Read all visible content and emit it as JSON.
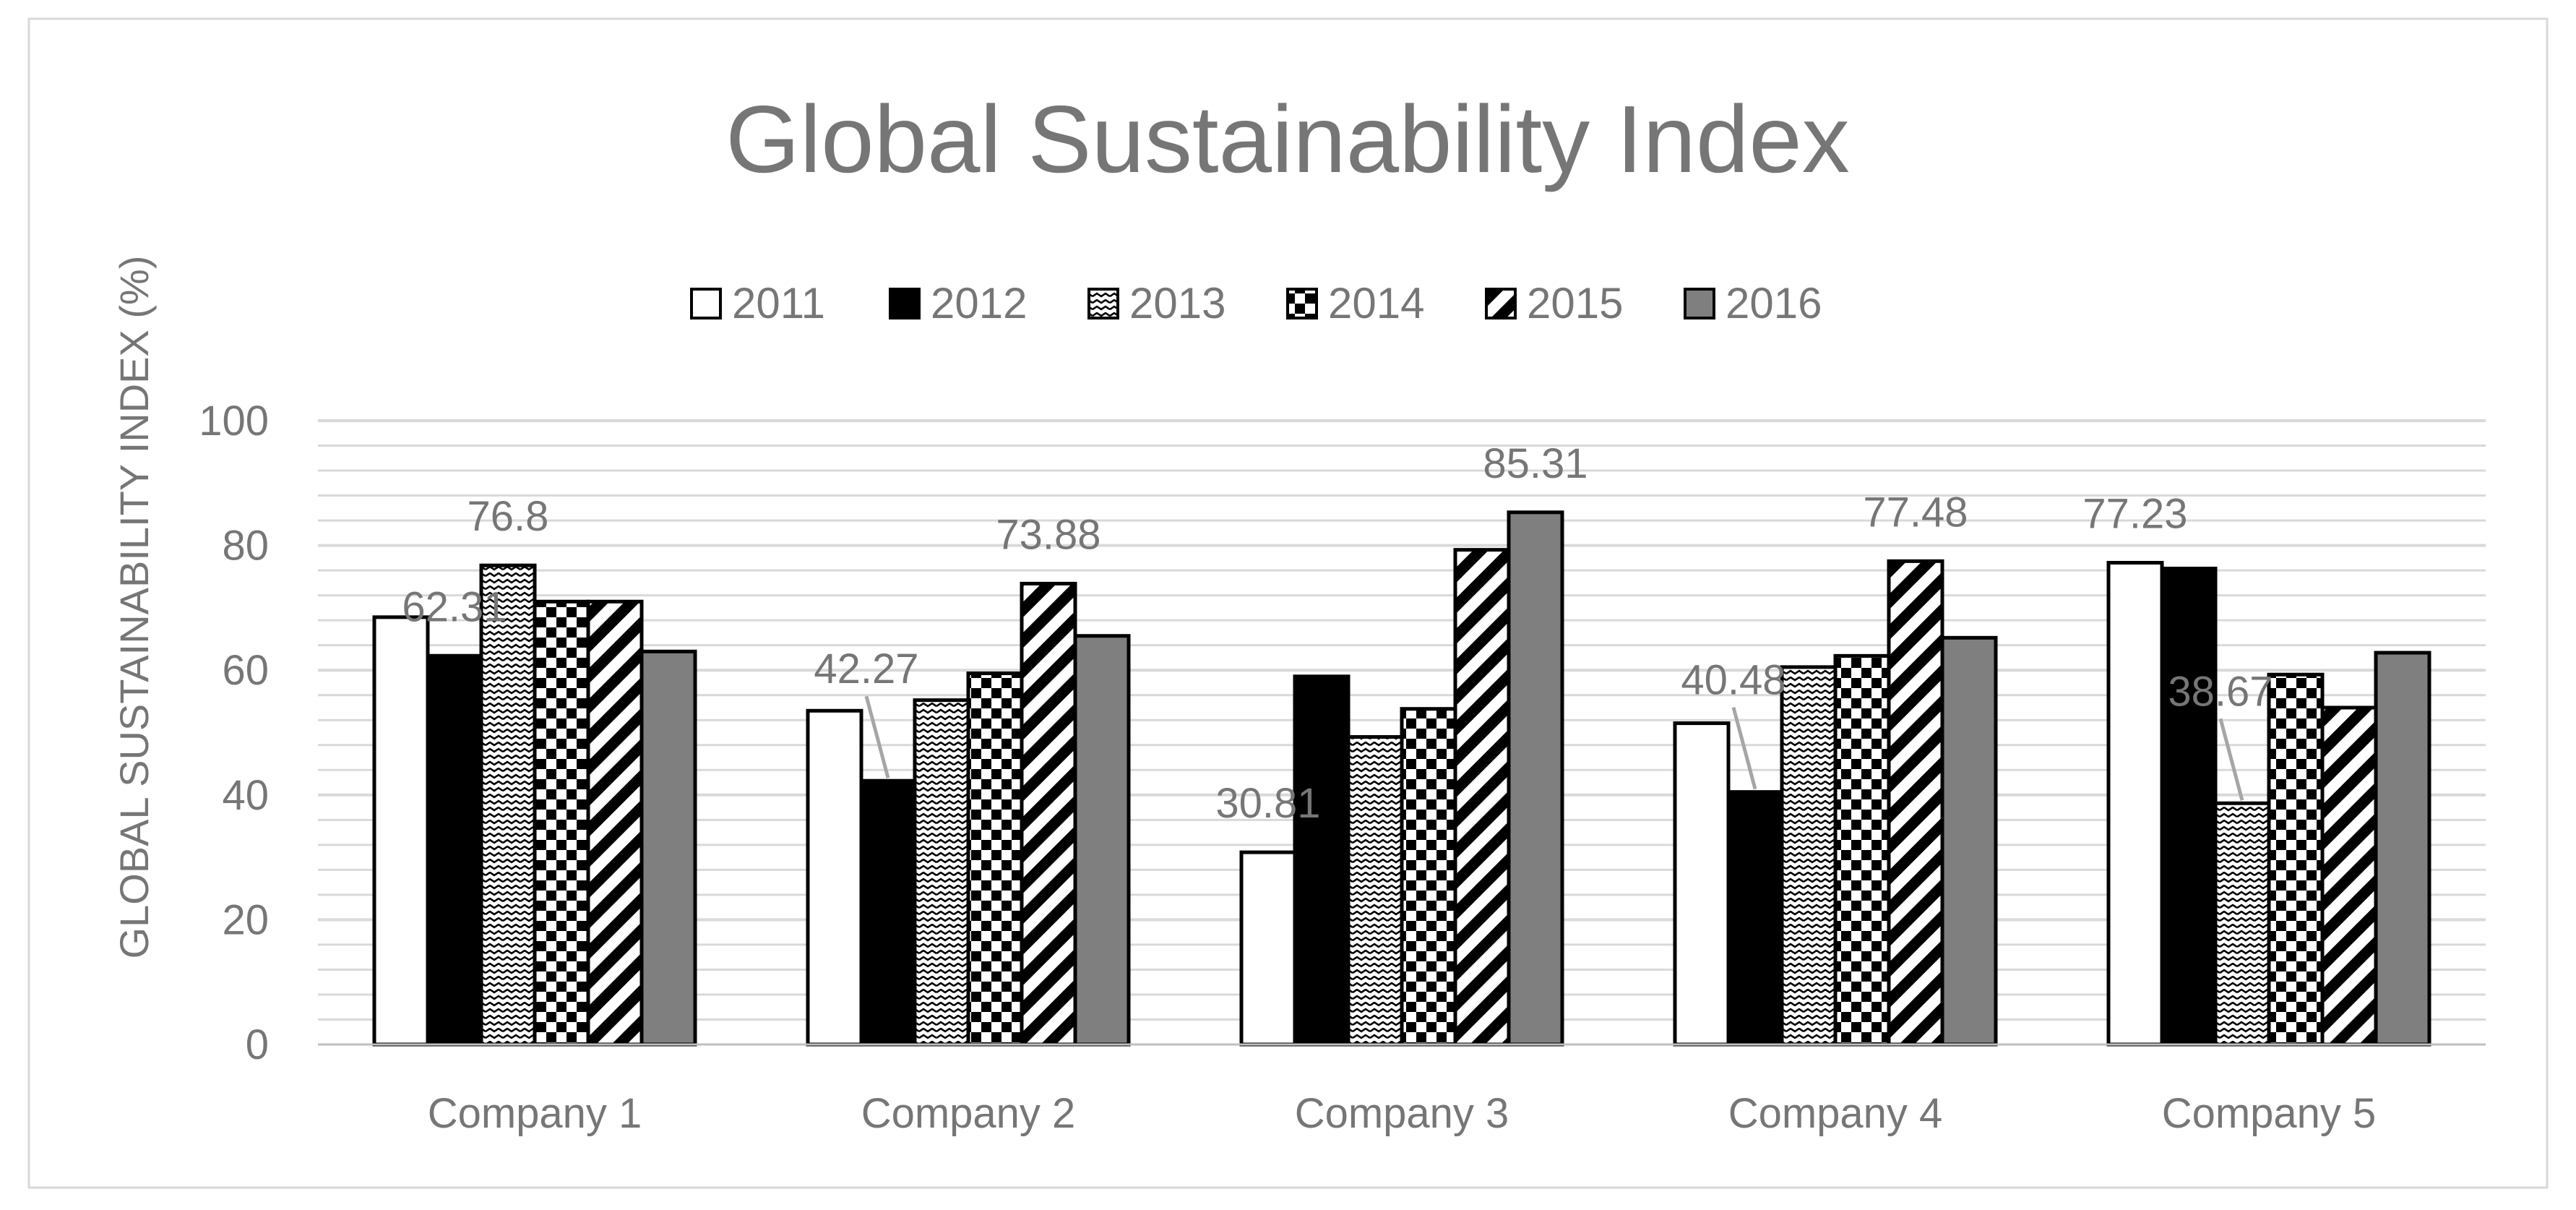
{
  "chart_data": {
    "type": "bar",
    "title": "Global Sustainability Index",
    "xlabel": "",
    "ylabel": "GLOBAL SUSTAINABILITY INDEX (%)",
    "ylim": [
      0,
      100
    ],
    "yticks": [
      0,
      20,
      40,
      60,
      80,
      100
    ],
    "minor_gridline_step": 4,
    "grid": true,
    "legend_position": "top",
    "categories": [
      "Company 1",
      "Company 2",
      "Company 3",
      "Company 4",
      "Company 5"
    ],
    "series": [
      {
        "name": "2011",
        "pattern": "white",
        "values": [
          68.5,
          53.5,
          30.81,
          51.5,
          77.23
        ]
      },
      {
        "name": "2012",
        "pattern": "black",
        "values": [
          62.31,
          42.27,
          59,
          40.48,
          76.3
        ]
      },
      {
        "name": "2013",
        "pattern": "wave",
        "values": [
          76.8,
          55.2,
          49.3,
          60.5,
          38.67
        ]
      },
      {
        "name": "2014",
        "pattern": "checker",
        "values": [
          71,
          59.5,
          53.8,
          62.3,
          59.3
        ]
      },
      {
        "name": "2015",
        "pattern": "diagonal",
        "values": [
          71,
          73.88,
          79.3,
          77.48,
          54
        ]
      },
      {
        "name": "2016",
        "pattern": "gray",
        "values": [
          63,
          65.5,
          85.31,
          65.2,
          62.8
        ]
      }
    ],
    "data_labels": [
      {
        "category": "Company 1",
        "series": "2012",
        "text": "62.31",
        "leader": false
      },
      {
        "category": "Company 1",
        "series": "2013",
        "text": "76.8",
        "leader": false
      },
      {
        "category": "Company 2",
        "series": "2012",
        "text": "42.27",
        "leader": true
      },
      {
        "category": "Company 2",
        "series": "2015",
        "text": "73.88",
        "leader": false
      },
      {
        "category": "Company 3",
        "series": "2011",
        "text": "30.81",
        "leader": false
      },
      {
        "category": "Company 3",
        "series": "2016",
        "text": "85.31",
        "leader": false
      },
      {
        "category": "Company 4",
        "series": "2012",
        "text": "40.48",
        "leader": true
      },
      {
        "category": "Company 4",
        "series": "2015",
        "text": "77.48",
        "leader": false
      },
      {
        "category": "Company 5",
        "series": "2011",
        "text": "77.23",
        "leader": false
      },
      {
        "category": "Company 5",
        "series": "2013",
        "text": "38.67",
        "leader": true
      }
    ],
    "colors": {
      "text": "#767676",
      "gridline": "#d9d9d9",
      "axis": "#bfbfbf",
      "frame": "#d9d9d9",
      "bar_outline": "#000000",
      "leader": "#a6a6a6",
      "gray_fill": "#7f7f7f"
    }
  }
}
